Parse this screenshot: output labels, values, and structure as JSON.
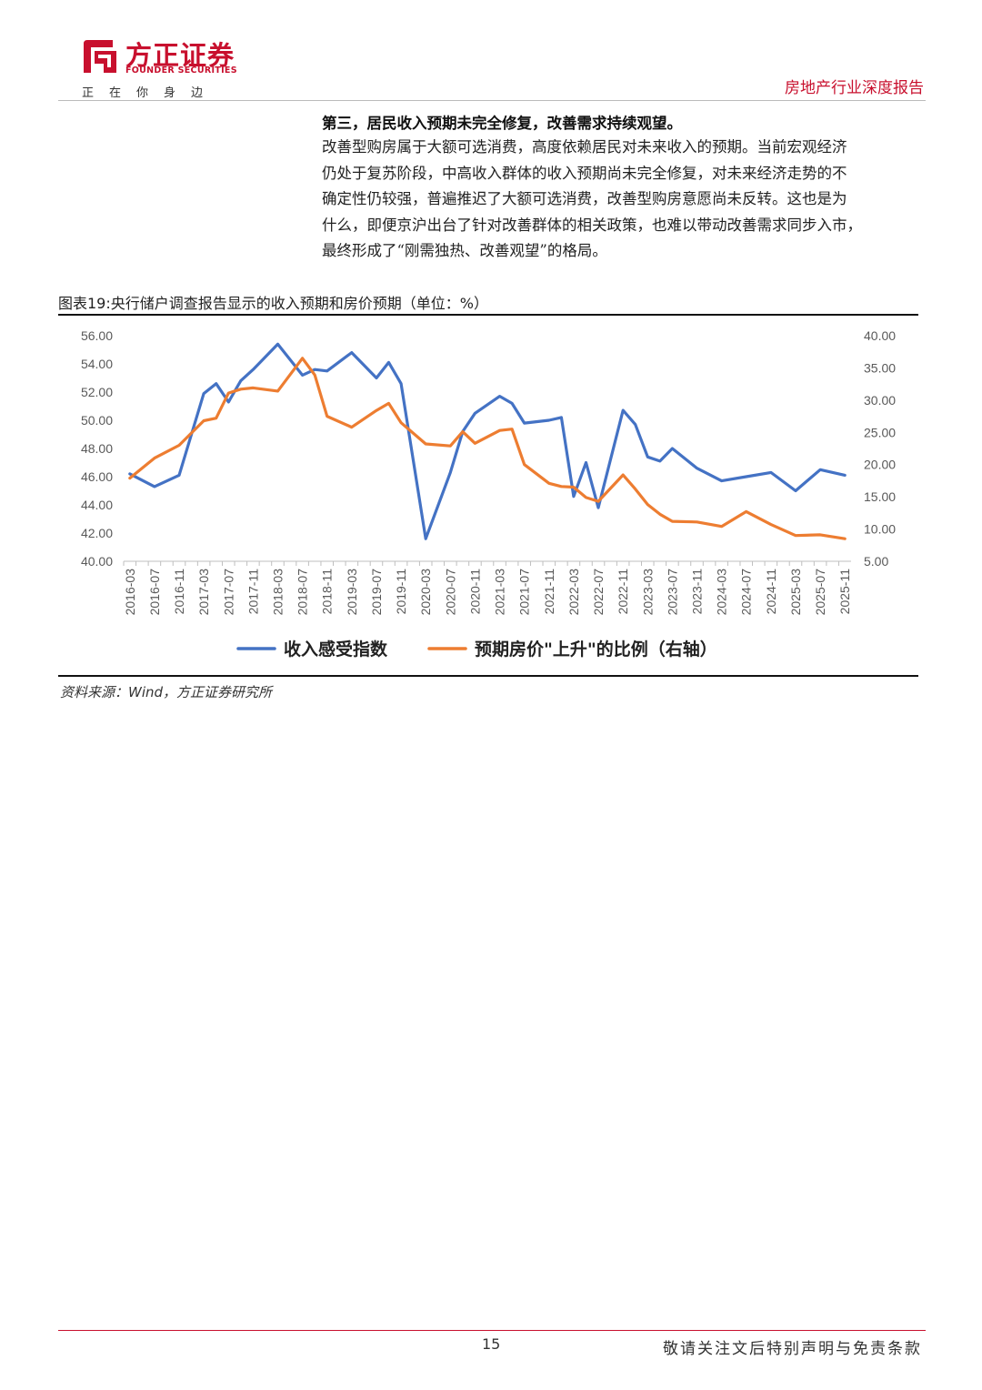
{
  "header": {
    "logo_cn": "方正证券",
    "logo_en": "FOUNDER SECURITIES",
    "slogan": "正在你身边",
    "report_type": "房地产行业深度报告"
  },
  "section": {
    "heading": "第三，居民收入预期未完全修复，改善需求持续观望。",
    "lines": [
      "改善型购房属于大额可选消费，高度依赖居民对未来收入的预期。当前宏观经济",
      "仍处于复苏阶段，中高收入群体的收入预期尚未完全修复，对未来经济走势的不",
      "确定性仍较强，普遍推迟了大额可选消费，改善型购房意愿尚未反转。这也是为",
      "什么，即便京沪出台了针对改善群体的相关政策，也难以带动改善需求同步入市，",
      "最终形成了“刚需独热、改善观望”的格局。"
    ]
  },
  "figure": {
    "title": "图表19:央行储户调查报告显示的收入预期和房价预期（单位：%）",
    "source": "资料来源：Wind，方正证券研究所"
  },
  "chart_data": {
    "type": "line",
    "x": [
      "2016-03",
      "2016-05",
      "2016-07",
      "2016-09",
      "2016-11",
      "2017-01",
      "2017-03",
      "2017-05",
      "2017-07",
      "2017-09",
      "2017-11",
      "2018-01",
      "2018-03",
      "2018-05",
      "2018-07",
      "2018-09",
      "2018-11",
      "2019-01",
      "2019-03",
      "2019-05",
      "2019-07",
      "2019-09",
      "2019-11",
      "2020-01",
      "2020-03",
      "2020-05",
      "2020-07",
      "2020-09",
      "2020-11",
      "2021-01",
      "2021-03",
      "2021-05",
      "2021-07",
      "2021-09",
      "2021-11",
      "2022-01",
      "2022-03",
      "2022-05",
      "2022-07",
      "2022-09",
      "2022-11",
      "2023-01",
      "2023-03",
      "2023-05",
      "2023-07",
      "2023-09",
      "2023-11",
      "2024-01",
      "2024-03",
      "2024-05",
      "2024-07",
      "2024-09",
      "2024-11",
      "2025-01",
      "2025-03",
      "2025-05",
      "2025-07",
      "2025-09",
      "2025-11"
    ],
    "x_tick_labels": [
      "2016-03",
      "2016-07",
      "2016-11",
      "2017-03",
      "2017-07",
      "2017-11",
      "2018-03",
      "2018-07",
      "2018-11",
      "2019-03",
      "2019-07",
      "2019-11",
      "2020-03",
      "2020-07",
      "2020-11",
      "2021-03",
      "2021-07",
      "2021-11",
      "2022-03",
      "2022-07",
      "2022-11",
      "2023-03",
      "2023-07",
      "2023-11",
      "2024-03",
      "2024-07",
      "2024-11",
      "2025-03",
      "2025-07",
      "2025-11"
    ],
    "series": [
      {
        "name": "收入感受指数",
        "axis": "left",
        "color": "#4472c4",
        "points": [
          [
            "2016-03",
            46.2
          ],
          [
            "2016-07",
            45.3
          ],
          [
            "2016-11",
            46.1
          ],
          [
            "2017-03",
            51.9
          ],
          [
            "2017-05",
            52.6
          ],
          [
            "2017-07",
            51.3
          ],
          [
            "2017-09",
            52.8
          ],
          [
            "2017-11",
            53.6
          ],
          [
            "2018-03",
            55.4
          ],
          [
            "2018-07",
            53.2
          ],
          [
            "2018-09",
            53.6
          ],
          [
            "2018-11",
            53.5
          ],
          [
            "2019-03",
            54.8
          ],
          [
            "2019-07",
            53.0
          ],
          [
            "2019-09",
            54.1
          ],
          [
            "2019-11",
            52.6
          ],
          [
            "2020-03",
            41.6
          ],
          [
            "2020-07",
            46.3
          ],
          [
            "2020-09",
            49.2
          ],
          [
            "2020-11",
            50.5
          ],
          [
            "2021-03",
            51.7
          ],
          [
            "2021-05",
            51.2
          ],
          [
            "2021-07",
            49.8
          ],
          [
            "2021-11",
            50.0
          ],
          [
            "2022-01",
            50.2
          ],
          [
            "2022-03",
            44.6
          ],
          [
            "2022-05",
            47.0
          ],
          [
            "2022-07",
            43.8
          ],
          [
            "2022-11",
            50.7
          ],
          [
            "2023-01",
            49.7
          ],
          [
            "2023-03",
            47.4
          ],
          [
            "2023-05",
            47.1
          ],
          [
            "2023-07",
            48.0
          ],
          [
            "2023-11",
            46.6
          ],
          [
            "2024-03",
            45.7
          ],
          [
            "2024-07",
            46.0
          ],
          [
            "2024-11",
            46.3
          ],
          [
            "2025-03",
            45.0
          ],
          [
            "2025-07",
            46.5
          ],
          [
            "2025-11",
            46.1
          ]
        ]
      },
      {
        "name": "预期房价\"上升\"的比例（右轴）",
        "axis": "right",
        "color": "#ed7d31",
        "points": [
          [
            "2016-03",
            17.9
          ],
          [
            "2016-07",
            21.0
          ],
          [
            "2016-11",
            23.0
          ],
          [
            "2017-03",
            26.8
          ],
          [
            "2017-05",
            27.2
          ],
          [
            "2017-07",
            31.1
          ],
          [
            "2017-09",
            31.7
          ],
          [
            "2017-11",
            31.9
          ],
          [
            "2018-03",
            31.4
          ],
          [
            "2018-07",
            36.5
          ],
          [
            "2018-09",
            33.9
          ],
          [
            "2018-11",
            27.5
          ],
          [
            "2019-03",
            25.8
          ],
          [
            "2019-07",
            28.4
          ],
          [
            "2019-09",
            29.5
          ],
          [
            "2019-11",
            26.5
          ],
          [
            "2020-03",
            23.2
          ],
          [
            "2020-07",
            22.9
          ],
          [
            "2020-09",
            25.1
          ],
          [
            "2020-11",
            23.3
          ],
          [
            "2021-03",
            25.3
          ],
          [
            "2021-05",
            25.5
          ],
          [
            "2021-07",
            20.0
          ],
          [
            "2021-11",
            17.1
          ],
          [
            "2022-01",
            16.6
          ],
          [
            "2022-03",
            16.5
          ],
          [
            "2022-05",
            14.9
          ],
          [
            "2022-07",
            14.3
          ],
          [
            "2022-11",
            18.4
          ],
          [
            "2023-01",
            16.2
          ],
          [
            "2023-03",
            13.8
          ],
          [
            "2023-05",
            12.3
          ],
          [
            "2023-07",
            11.2
          ],
          [
            "2023-11",
            11.1
          ],
          [
            "2024-03",
            10.4
          ],
          [
            "2024-07",
            12.7
          ],
          [
            "2024-11",
            10.7
          ],
          [
            "2025-03",
            9.0
          ],
          [
            "2025-07",
            9.1
          ],
          [
            "2025-11",
            8.5
          ]
        ]
      }
    ],
    "y_left": {
      "lim": [
        40,
        56
      ],
      "ticks": [
        "40.00",
        "42.00",
        "44.00",
        "46.00",
        "48.00",
        "50.00",
        "52.00",
        "54.00",
        "56.00"
      ]
    },
    "y_right": {
      "lim": [
        5,
        40
      ],
      "ticks": [
        "5.00",
        "10.00",
        "15.00",
        "20.00",
        "25.00",
        "30.00",
        "35.00",
        "40.00"
      ]
    },
    "grid": false,
    "legend_position": "bottom"
  },
  "footer": {
    "page_number": "15",
    "disclaimer": "敬请关注文后特别声明与免责条款"
  }
}
